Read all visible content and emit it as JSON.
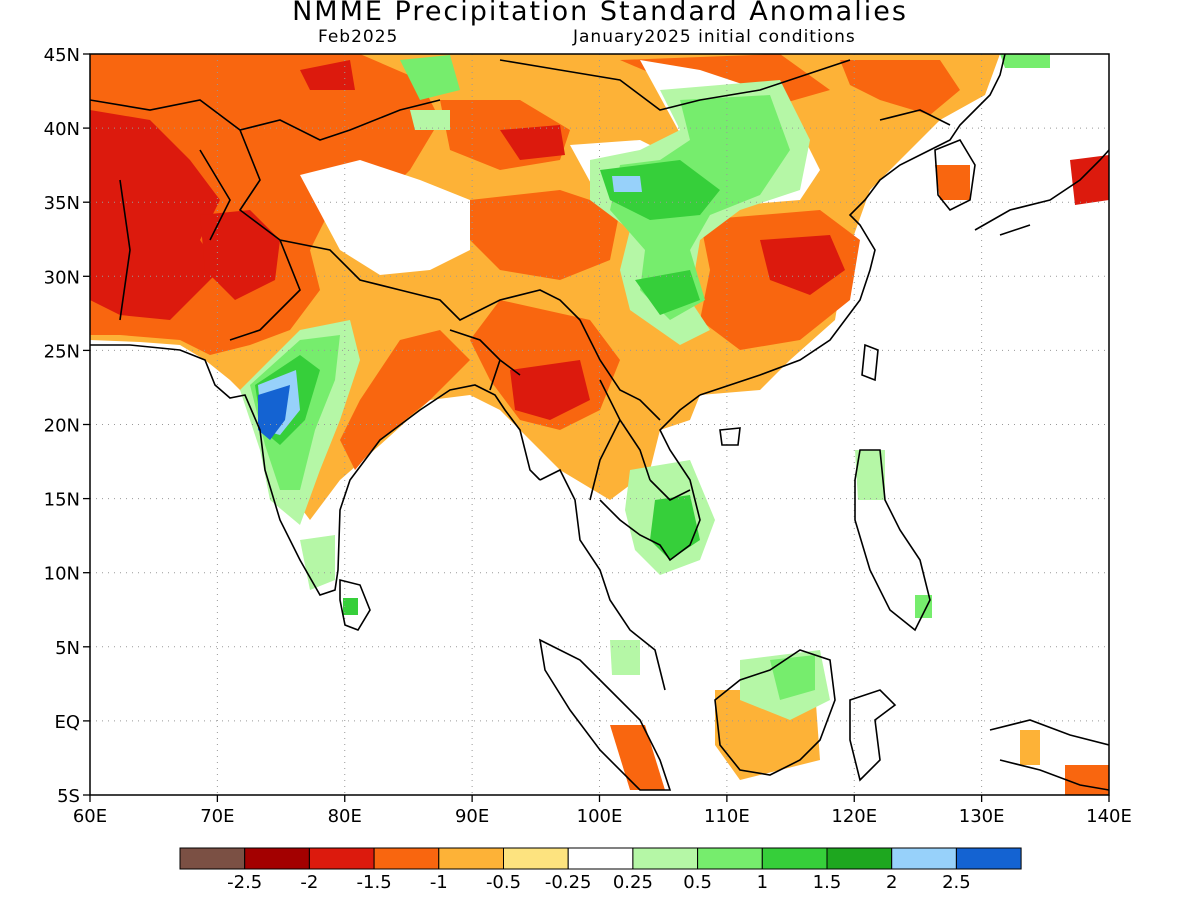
{
  "header": {
    "title": "NMME Precipitation Standard Anomalies",
    "target_month": "Feb2025",
    "initial_conditions": "January2025 initial conditions"
  },
  "map": {
    "region": "South and East Asia",
    "lon_range": [
      60,
      140
    ],
    "lat_range": [
      -5,
      45
    ],
    "grid": true,
    "lat_ticks": [
      {
        "value": 45,
        "label": "45N"
      },
      {
        "value": 40,
        "label": "40N"
      },
      {
        "value": 35,
        "label": "35N"
      },
      {
        "value": 30,
        "label": "30N"
      },
      {
        "value": 25,
        "label": "25N"
      },
      {
        "value": 20,
        "label": "20N"
      },
      {
        "value": 15,
        "label": "15N"
      },
      {
        "value": 10,
        "label": "10N"
      },
      {
        "value": 5,
        "label": "5N"
      },
      {
        "value": 0,
        "label": "EQ"
      },
      {
        "value": -5,
        "label": "5S"
      }
    ],
    "lon_ticks": [
      {
        "value": 60,
        "label": "60E"
      },
      {
        "value": 70,
        "label": "70E"
      },
      {
        "value": 80,
        "label": "80E"
      },
      {
        "value": 90,
        "label": "90E"
      },
      {
        "value": 100,
        "label": "100E"
      },
      {
        "value": 110,
        "label": "110E"
      },
      {
        "value": 120,
        "label": "120E"
      },
      {
        "value": 130,
        "label": "130E"
      },
      {
        "value": 140,
        "label": "140E"
      }
    ]
  },
  "legend": {
    "colors": [
      "#7b5044",
      "#a30000",
      "#dc1a0d",
      "#f9660f",
      "#fdb237",
      "#fde37f",
      "#ffffff",
      "#b5f7a6",
      "#76ed6d",
      "#36cf3a",
      "#1ea71f",
      "#97d1fa",
      "#1463d2"
    ],
    "labels": [
      "-2.5",
      "-2",
      "-1.5",
      "-1",
      "-0.5",
      "-0.25",
      "0.25",
      "0.5",
      "1",
      "1.5",
      "2",
      "2.5"
    ]
  }
}
